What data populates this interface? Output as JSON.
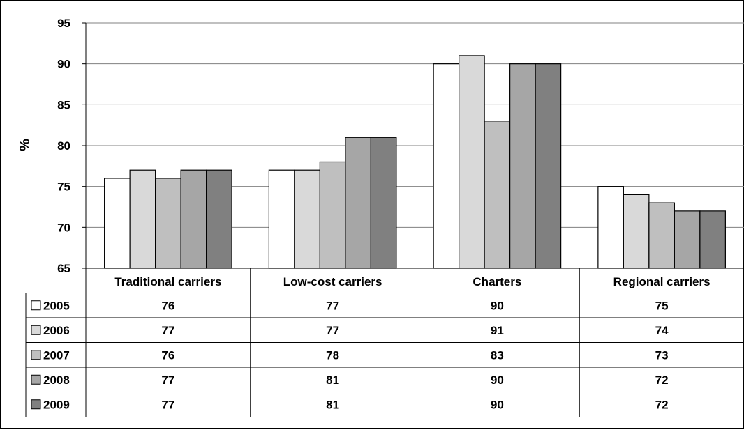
{
  "chart_data": {
    "type": "bar",
    "ylabel": "%",
    "ylim": [
      65,
      95
    ],
    "yticks": [
      65,
      70,
      75,
      80,
      85,
      90,
      95
    ],
    "grid": true,
    "legend": "data-table",
    "categories": [
      "Traditional carriers",
      "Low-cost carriers",
      "Charters",
      "Regional carriers"
    ],
    "series": [
      {
        "name": "2005",
        "color": "#ffffff",
        "values": [
          76,
          77,
          90,
          75
        ]
      },
      {
        "name": "2006",
        "color": "#d9d9d9",
        "values": [
          77,
          77,
          91,
          74
        ]
      },
      {
        "name": "2007",
        "color": "#bfbfbf",
        "values": [
          76,
          78,
          83,
          73
        ]
      },
      {
        "name": "2008",
        "color": "#a6a6a6",
        "values": [
          77,
          81,
          90,
          72
        ]
      },
      {
        "name": "2009",
        "color": "#808080",
        "values": [
          77,
          81,
          90,
          72
        ]
      }
    ]
  }
}
